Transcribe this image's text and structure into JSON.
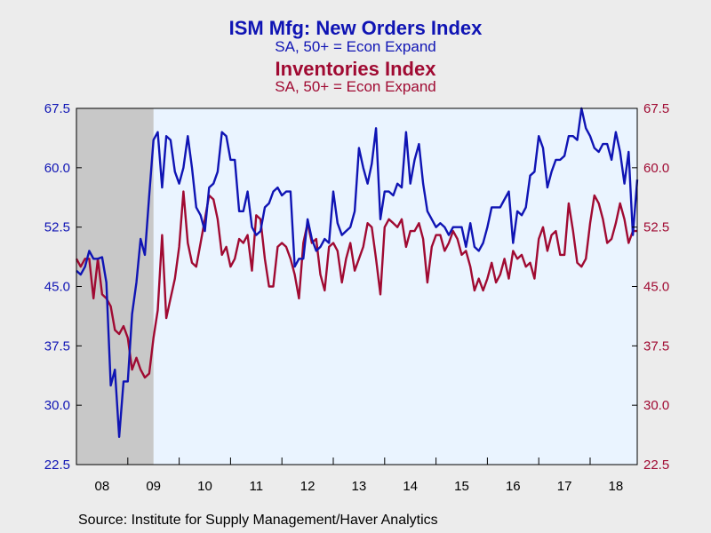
{
  "colors": {
    "series1": "#0f14b4",
    "series2": "#a00a32",
    "plot_bg": "#eaf4ff",
    "shade": "#c8c8c8",
    "page_bg": "#ececec"
  },
  "chart_data": {
    "type": "line",
    "title": "ISM Mfg: New Orders Index",
    "subtitle": "SA, 50+ = Econ Expand",
    "title_2": "Inventories Index",
    "subtitle_2": "SA, 50+ = Econ Expand",
    "source": "Source:  Institute for Supply Management/Haver Analytics",
    "ylim": [
      22.5,
      67.5
    ],
    "y_ticks": [
      "22.5",
      "30.0",
      "37.5",
      "45.0",
      "52.5",
      "60.0",
      "67.5"
    ],
    "x_ticks": [
      "08",
      "09",
      "10",
      "11",
      "12",
      "13",
      "14",
      "15",
      "16",
      "17",
      "18"
    ],
    "x_start_year": 2008,
    "x_end_year": 2018.917,
    "recession_shading": [
      2008,
      2009.5
    ],
    "grid": false,
    "series": [
      {
        "name": "ISM Mfg: New Orders Index",
        "axis": "left",
        "values": [
          [
            2008.0,
            47.0
          ],
          [
            2008.083,
            46.5
          ],
          [
            2008.167,
            47.5
          ],
          [
            2008.25,
            49.5
          ],
          [
            2008.333,
            48.5
          ],
          [
            2008.417,
            48.5
          ],
          [
            2008.5,
            48.7
          ],
          [
            2008.583,
            45.5
          ],
          [
            2008.667,
            32.5
          ],
          [
            2008.75,
            34.5
          ],
          [
            2008.833,
            26.0
          ],
          [
            2008.917,
            33.0
          ],
          [
            2009.0,
            33.0
          ],
          [
            2009.083,
            41.5
          ],
          [
            2009.167,
            45.5
          ],
          [
            2009.25,
            51.0
          ],
          [
            2009.333,
            49.0
          ],
          [
            2009.417,
            56.5
          ],
          [
            2009.5,
            63.5
          ],
          [
            2009.583,
            64.5
          ],
          [
            2009.667,
            57.5
          ],
          [
            2009.75,
            64.0
          ],
          [
            2009.833,
            63.5
          ],
          [
            2009.917,
            59.5
          ],
          [
            2010.0,
            58.0
          ],
          [
            2010.083,
            60.0
          ],
          [
            2010.167,
            64.0
          ],
          [
            2010.25,
            60.0
          ],
          [
            2010.333,
            55.0
          ],
          [
            2010.417,
            54.0
          ],
          [
            2010.5,
            52.0
          ],
          [
            2010.583,
            57.5
          ],
          [
            2010.667,
            58.0
          ],
          [
            2010.75,
            59.5
          ],
          [
            2010.833,
            64.5
          ],
          [
            2010.917,
            64.0
          ],
          [
            2011.0,
            61.0
          ],
          [
            2011.083,
            61.0
          ],
          [
            2011.167,
            54.5
          ],
          [
            2011.25,
            54.5
          ],
          [
            2011.333,
            57.0
          ],
          [
            2011.417,
            52.5
          ],
          [
            2011.5,
            51.5
          ],
          [
            2011.583,
            52.0
          ],
          [
            2011.667,
            55.0
          ],
          [
            2011.75,
            55.5
          ],
          [
            2011.833,
            57.0
          ],
          [
            2011.917,
            57.5
          ],
          [
            2012.0,
            56.5
          ],
          [
            2012.083,
            57.0
          ],
          [
            2012.167,
            57.0
          ],
          [
            2012.25,
            47.5
          ],
          [
            2012.333,
            48.5
          ],
          [
            2012.417,
            48.5
          ],
          [
            2012.5,
            53.5
          ],
          [
            2012.583,
            51.0
          ],
          [
            2012.667,
            49.5
          ],
          [
            2012.75,
            50.0
          ],
          [
            2012.833,
            51.0
          ],
          [
            2012.917,
            50.5
          ],
          [
            2013.0,
            57.0
          ],
          [
            2013.083,
            53.0
          ],
          [
            2013.167,
            51.5
          ],
          [
            2013.25,
            52.0
          ],
          [
            2013.333,
            52.5
          ],
          [
            2013.417,
            54.5
          ],
          [
            2013.5,
            62.5
          ],
          [
            2013.583,
            60.0
          ],
          [
            2013.667,
            58.0
          ],
          [
            2013.75,
            60.5
          ],
          [
            2013.833,
            65.0
          ],
          [
            2013.917,
            53.5
          ],
          [
            2014.0,
            57.0
          ],
          [
            2014.083,
            57.0
          ],
          [
            2014.167,
            56.5
          ],
          [
            2014.25,
            58.0
          ],
          [
            2014.333,
            57.5
          ],
          [
            2014.417,
            64.5
          ],
          [
            2014.5,
            58.0
          ],
          [
            2014.583,
            61.0
          ],
          [
            2014.667,
            63.0
          ],
          [
            2014.75,
            58.0
          ],
          [
            2014.833,
            54.5
          ],
          [
            2014.917,
            53.5
          ],
          [
            2015.0,
            52.5
          ],
          [
            2015.083,
            53.0
          ],
          [
            2015.167,
            52.5
          ],
          [
            2015.25,
            51.5
          ],
          [
            2015.333,
            52.5
          ],
          [
            2015.417,
            52.5
          ],
          [
            2015.5,
            52.5
          ],
          [
            2015.583,
            50.0
          ],
          [
            2015.667,
            53.0
          ],
          [
            2015.75,
            50.0
          ],
          [
            2015.833,
            49.5
          ],
          [
            2015.917,
            50.5
          ],
          [
            2016.0,
            52.5
          ],
          [
            2016.083,
            55.0
          ],
          [
            2016.167,
            55.0
          ],
          [
            2016.25,
            55.0
          ],
          [
            2016.333,
            56.0
          ],
          [
            2016.417,
            57.0
          ],
          [
            2016.5,
            50.5
          ],
          [
            2016.583,
            54.5
          ],
          [
            2016.667,
            54.0
          ],
          [
            2016.75,
            55.0
          ],
          [
            2016.833,
            59.0
          ],
          [
            2016.917,
            59.5
          ],
          [
            2017.0,
            64.0
          ],
          [
            2017.083,
            62.5
          ],
          [
            2017.167,
            57.5
          ],
          [
            2017.25,
            59.5
          ],
          [
            2017.333,
            61.0
          ],
          [
            2017.417,
            61.0
          ],
          [
            2017.5,
            61.5
          ],
          [
            2017.583,
            64.0
          ],
          [
            2017.667,
            64.0
          ],
          [
            2017.75,
            63.5
          ],
          [
            2017.833,
            67.5
          ],
          [
            2017.917,
            65.0
          ],
          [
            2018.0,
            64.0
          ],
          [
            2018.083,
            62.5
          ],
          [
            2018.167,
            62.0
          ],
          [
            2018.25,
            63.0
          ],
          [
            2018.333,
            63.0
          ],
          [
            2018.417,
            61.0
          ],
          [
            2018.5,
            64.5
          ],
          [
            2018.583,
            62.0
          ],
          [
            2018.667,
            58.0
          ],
          [
            2018.75,
            62.0
          ],
          [
            2018.833,
            51.5
          ],
          [
            2018.917,
            58.5
          ]
        ]
      },
      {
        "name": "Inventories Index",
        "axis": "right",
        "values": [
          [
            2008.0,
            48.5
          ],
          [
            2008.083,
            47.5
          ],
          [
            2008.167,
            48.5
          ],
          [
            2008.25,
            48.5
          ],
          [
            2008.333,
            43.5
          ],
          [
            2008.417,
            48.5
          ],
          [
            2008.5,
            44.0
          ],
          [
            2008.583,
            43.5
          ],
          [
            2008.667,
            42.5
          ],
          [
            2008.75,
            39.5
          ],
          [
            2008.833,
            39.0
          ],
          [
            2008.917,
            40.0
          ],
          [
            2009.0,
            38.5
          ],
          [
            2009.083,
            34.5
          ],
          [
            2009.167,
            36.0
          ],
          [
            2009.25,
            34.5
          ],
          [
            2009.333,
            33.5
          ],
          [
            2009.417,
            34.0
          ],
          [
            2009.5,
            38.5
          ],
          [
            2009.583,
            42.0
          ],
          [
            2009.667,
            51.5
          ],
          [
            2009.75,
            41.0
          ],
          [
            2009.833,
            43.5
          ],
          [
            2009.917,
            46.0
          ],
          [
            2010.0,
            50.0
          ],
          [
            2010.083,
            57.0
          ],
          [
            2010.167,
            50.5
          ],
          [
            2010.25,
            48.0
          ],
          [
            2010.333,
            47.5
          ],
          [
            2010.417,
            50.5
          ],
          [
            2010.5,
            53.5
          ],
          [
            2010.583,
            56.5
          ],
          [
            2010.667,
            56.0
          ],
          [
            2010.75,
            53.5
          ],
          [
            2010.833,
            49.0
          ],
          [
            2010.917,
            50.0
          ],
          [
            2011.0,
            47.5
          ],
          [
            2011.083,
            48.5
          ],
          [
            2011.167,
            51.0
          ],
          [
            2011.25,
            50.5
          ],
          [
            2011.333,
            51.5
          ],
          [
            2011.417,
            47.0
          ],
          [
            2011.5,
            54.0
          ],
          [
            2011.583,
            53.5
          ],
          [
            2011.667,
            48.5
          ],
          [
            2011.75,
            45.0
          ],
          [
            2011.833,
            45.0
          ],
          [
            2011.917,
            50.0
          ],
          [
            2012.0,
            50.5
          ],
          [
            2012.083,
            50.0
          ],
          [
            2012.167,
            48.5
          ],
          [
            2012.25,
            46.5
          ],
          [
            2012.333,
            43.5
          ],
          [
            2012.417,
            50.5
          ],
          [
            2012.5,
            53.0
          ],
          [
            2012.583,
            50.5
          ],
          [
            2012.667,
            51.0
          ],
          [
            2012.75,
            46.5
          ],
          [
            2012.833,
            44.5
          ],
          [
            2012.917,
            50.0
          ],
          [
            2013.0,
            50.5
          ],
          [
            2013.083,
            49.5
          ],
          [
            2013.167,
            45.5
          ],
          [
            2013.25,
            48.5
          ],
          [
            2013.333,
            50.5
          ],
          [
            2013.417,
            47.0
          ],
          [
            2013.5,
            48.5
          ],
          [
            2013.583,
            50.0
          ],
          [
            2013.667,
            53.0
          ],
          [
            2013.75,
            52.5
          ],
          [
            2013.833,
            48.5
          ],
          [
            2013.917,
            44.0
          ],
          [
            2014.0,
            52.5
          ],
          [
            2014.083,
            53.5
          ],
          [
            2014.167,
            53.0
          ],
          [
            2014.25,
            52.5
          ],
          [
            2014.333,
            53.5
          ],
          [
            2014.417,
            50.0
          ],
          [
            2014.5,
            52.0
          ],
          [
            2014.583,
            52.0
          ],
          [
            2014.667,
            53.0
          ],
          [
            2014.75,
            51.0
          ],
          [
            2014.833,
            45.5
          ],
          [
            2014.917,
            50.0
          ],
          [
            2015.0,
            51.5
          ],
          [
            2015.083,
            51.5
          ],
          [
            2015.167,
            49.5
          ],
          [
            2015.25,
            50.5
          ],
          [
            2015.333,
            52.0
          ],
          [
            2015.417,
            51.0
          ],
          [
            2015.5,
            49.0
          ],
          [
            2015.583,
            49.5
          ],
          [
            2015.667,
            47.5
          ],
          [
            2015.75,
            44.5
          ],
          [
            2015.833,
            46.0
          ],
          [
            2015.917,
            44.5
          ],
          [
            2016.0,
            46.0
          ],
          [
            2016.083,
            48.0
          ],
          [
            2016.167,
            45.5
          ],
          [
            2016.25,
            46.5
          ],
          [
            2016.333,
            48.5
          ],
          [
            2016.417,
            46.0
          ],
          [
            2016.5,
            49.5
          ],
          [
            2016.583,
            48.5
          ],
          [
            2016.667,
            49.0
          ],
          [
            2016.75,
            47.5
          ],
          [
            2016.833,
            48.0
          ],
          [
            2016.917,
            46.0
          ],
          [
            2017.0,
            51.0
          ],
          [
            2017.083,
            52.5
          ],
          [
            2017.167,
            49.5
          ],
          [
            2017.25,
            51.5
          ],
          [
            2017.333,
            52.0
          ],
          [
            2017.417,
            49.0
          ],
          [
            2017.5,
            49.0
          ],
          [
            2017.583,
            55.5
          ],
          [
            2017.667,
            52.0
          ],
          [
            2017.75,
            48.0
          ],
          [
            2017.833,
            47.5
          ],
          [
            2017.917,
            48.5
          ],
          [
            2018.0,
            53.0
          ],
          [
            2018.083,
            56.5
          ],
          [
            2018.167,
            55.5
          ],
          [
            2018.25,
            53.5
          ],
          [
            2018.333,
            50.5
          ],
          [
            2018.417,
            51.0
          ],
          [
            2018.5,
            53.0
          ],
          [
            2018.583,
            55.5
          ],
          [
            2018.667,
            53.5
          ],
          [
            2018.75,
            50.5
          ],
          [
            2018.833,
            52.0
          ],
          [
            2018.917,
            52.0
          ]
        ]
      }
    ]
  }
}
